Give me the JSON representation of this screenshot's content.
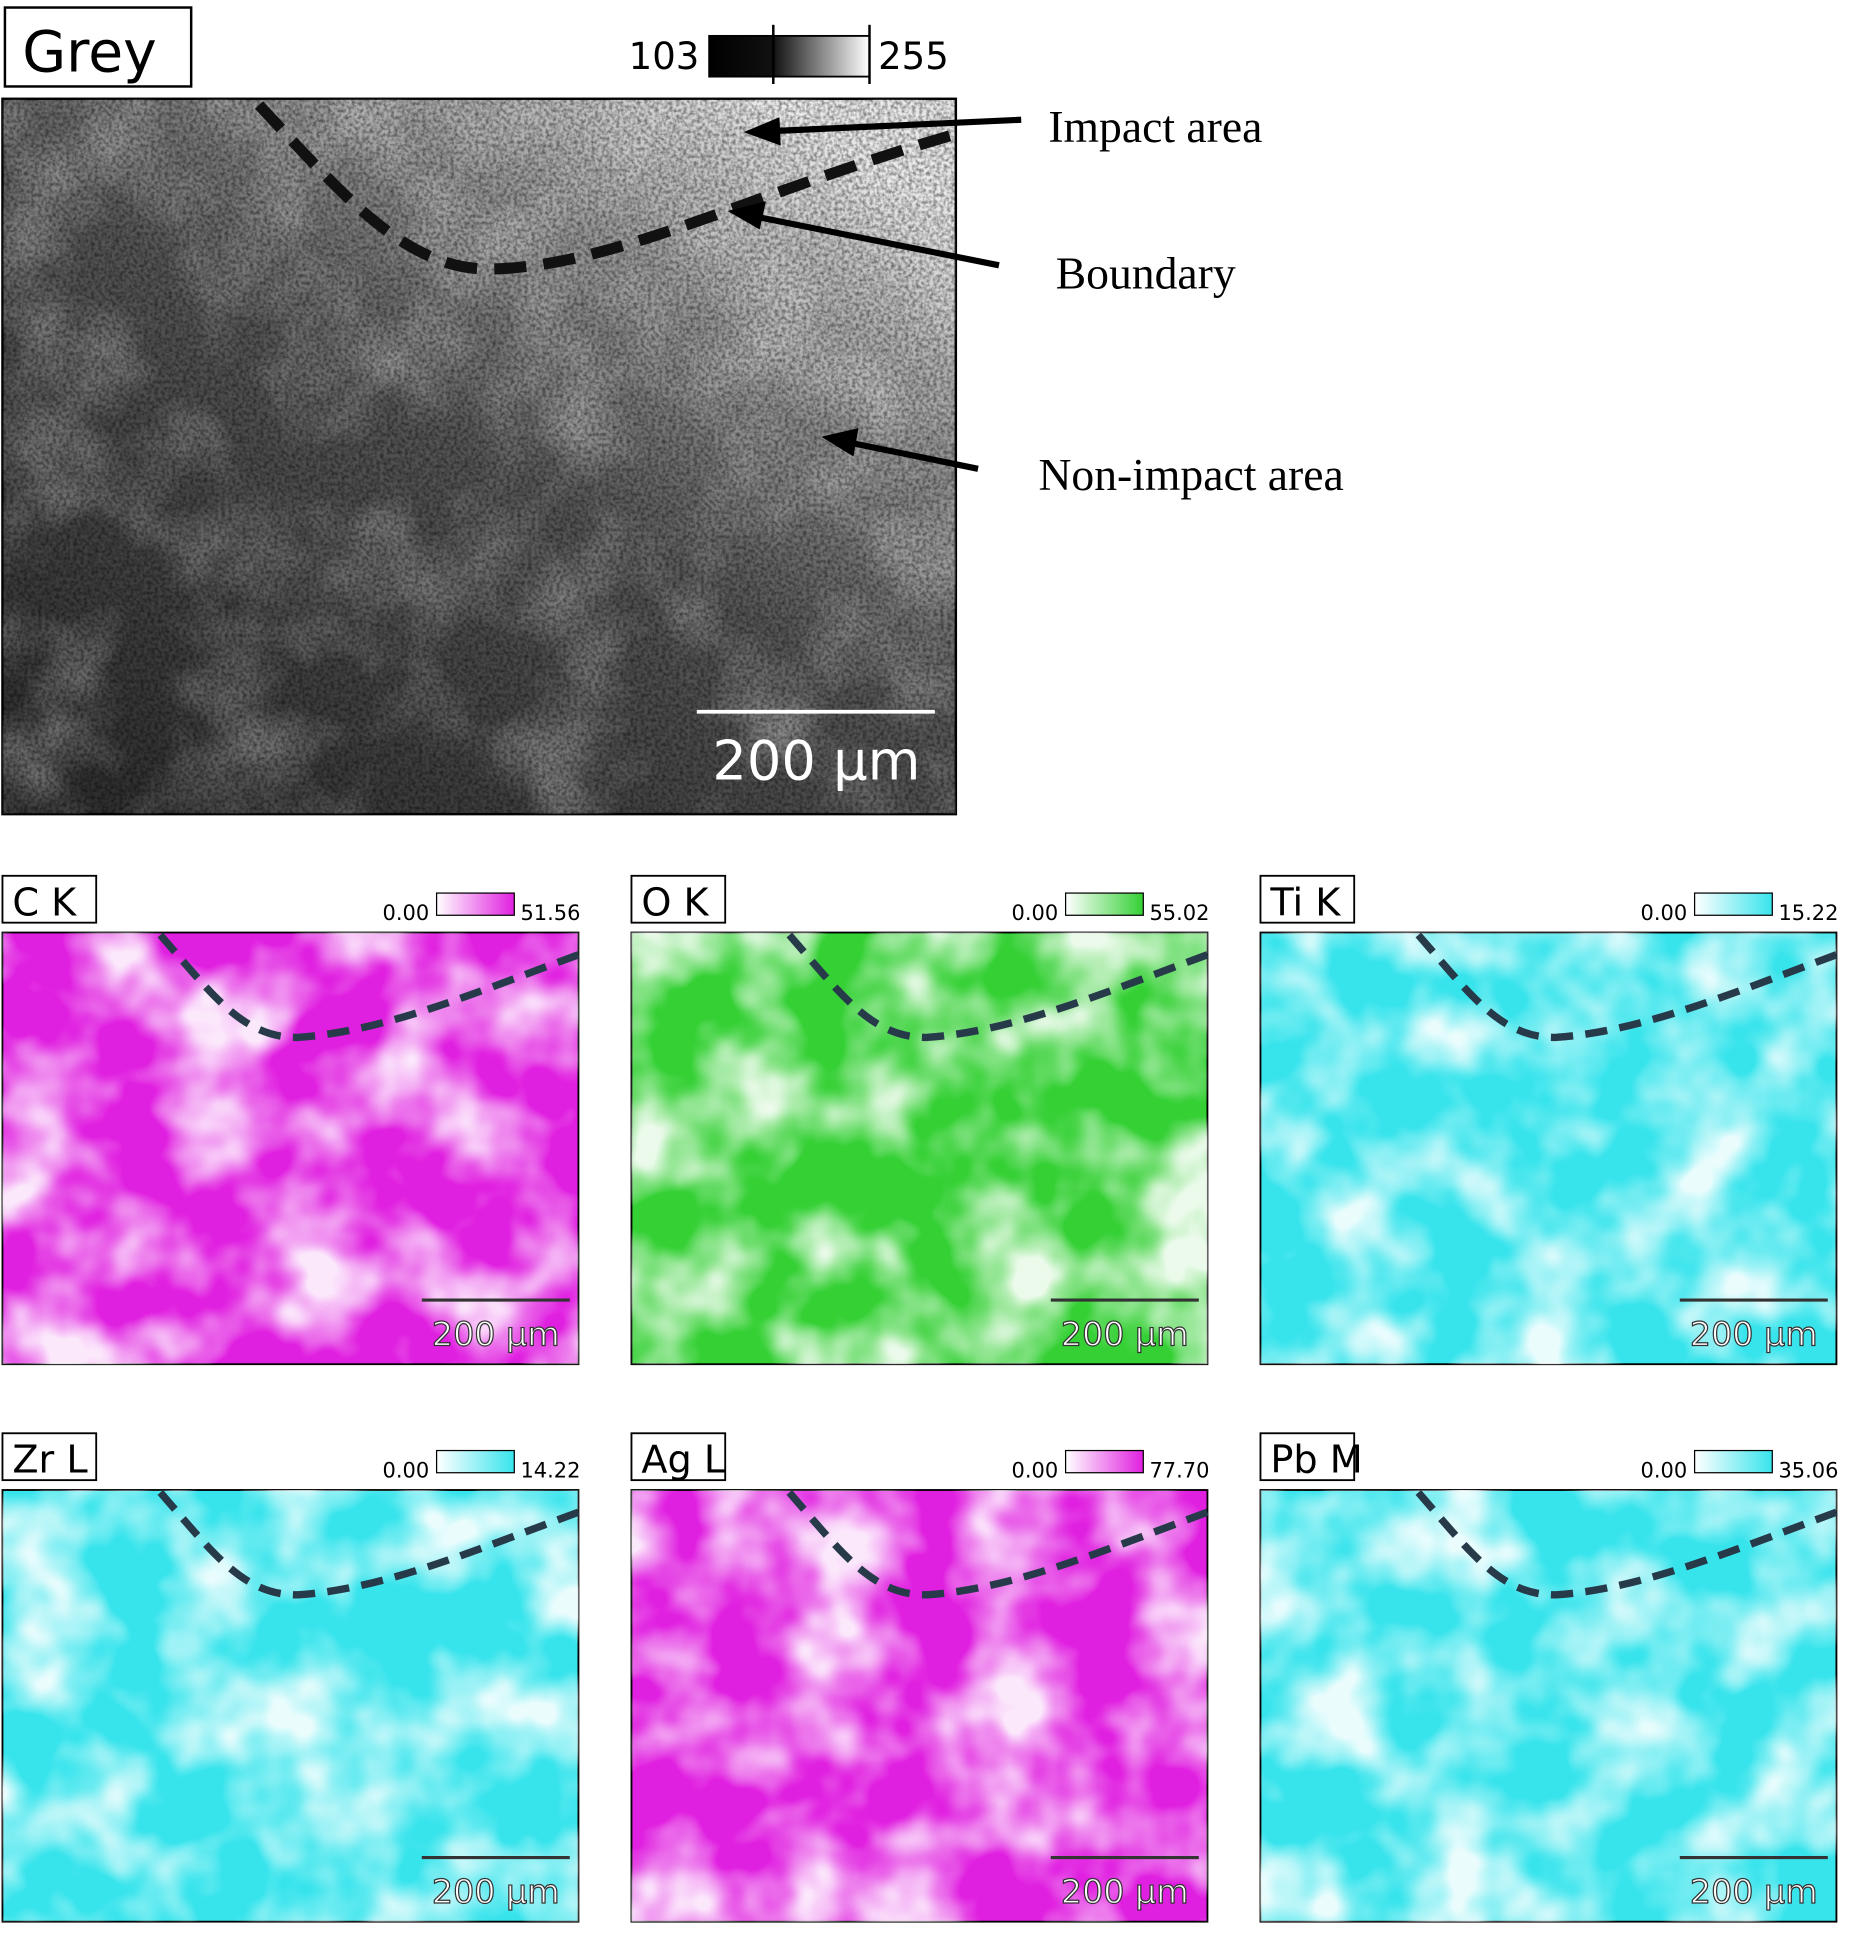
{
  "main_panel": {
    "label": "Grey",
    "colorbar": {
      "min": "103",
      "max": "255"
    },
    "scale_bar": "200 µm",
    "annotations": [
      "Impact area",
      "Boundary",
      "Non-impact area"
    ]
  },
  "maps": [
    {
      "label": "C K",
      "min": "0.00",
      "max": "51.56",
      "scale_bar": "200 µm",
      "color": "#e020e0"
    },
    {
      "label": "O K",
      "min": "0.00",
      "max": "55.02",
      "scale_bar": "200 µm",
      "color": "#34d034"
    },
    {
      "label": "Ti K",
      "min": "0.00",
      "max": "15.22",
      "scale_bar": "200 µm",
      "color": "#38e4ec"
    },
    {
      "label": "Zr L",
      "min": "0.00",
      "max": "14.22",
      "scale_bar": "200 µm",
      "color": "#38e4ec"
    },
    {
      "label": "Ag L",
      "min": "0.00",
      "max": "77.70",
      "scale_bar": "200 µm",
      "color": "#e020e0"
    },
    {
      "label": "Pb M",
      "min": "0.00",
      "max": "35.06",
      "scale_bar": "200 µm",
      "color": "#38e4ec"
    }
  ]
}
